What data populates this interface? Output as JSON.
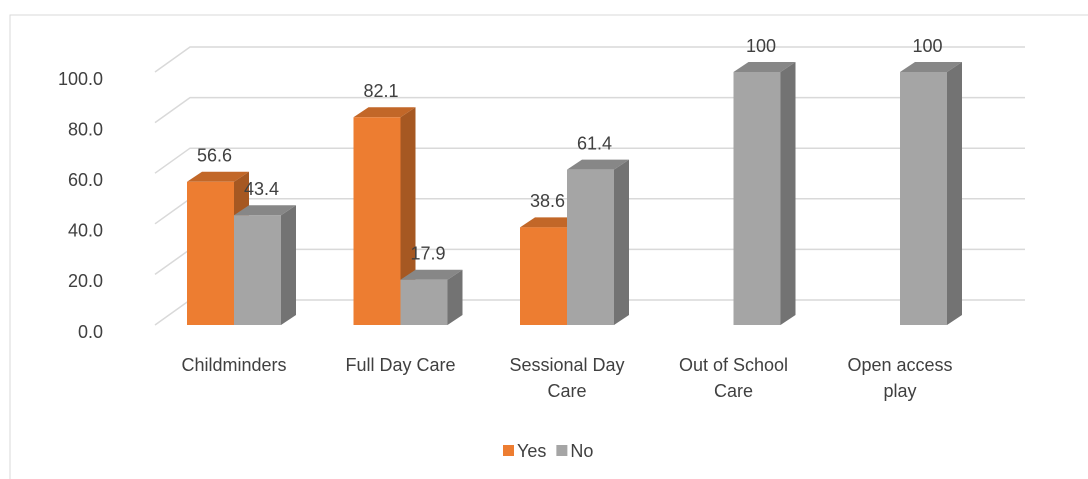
{
  "chart_data": {
    "type": "bar3d",
    "categories": [
      "Childminders",
      "Full Day Care",
      "Sessional Day Care",
      "Out of School Care",
      "Open access play"
    ],
    "series": [
      {
        "name": "Yes",
        "color": "#ed7d31",
        "values": [
          56.6,
          82.1,
          38.6,
          null,
          null
        ]
      },
      {
        "name": "No",
        "color": "#a5a5a5",
        "values": [
          43.4,
          17.9,
          61.4,
          100,
          100
        ]
      }
    ],
    "ylim": [
      0,
      100
    ],
    "yticks": [
      {
        "value": 0,
        "label": "0.0"
      },
      {
        "value": 20,
        "label": "20.0"
      },
      {
        "value": 40,
        "label": "40.0"
      },
      {
        "value": 60,
        "label": "60.0"
      },
      {
        "value": 80,
        "label": "80.0"
      },
      {
        "value": 100,
        "label": "100.0"
      }
    ],
    "grid": true,
    "legend": "bottom"
  }
}
